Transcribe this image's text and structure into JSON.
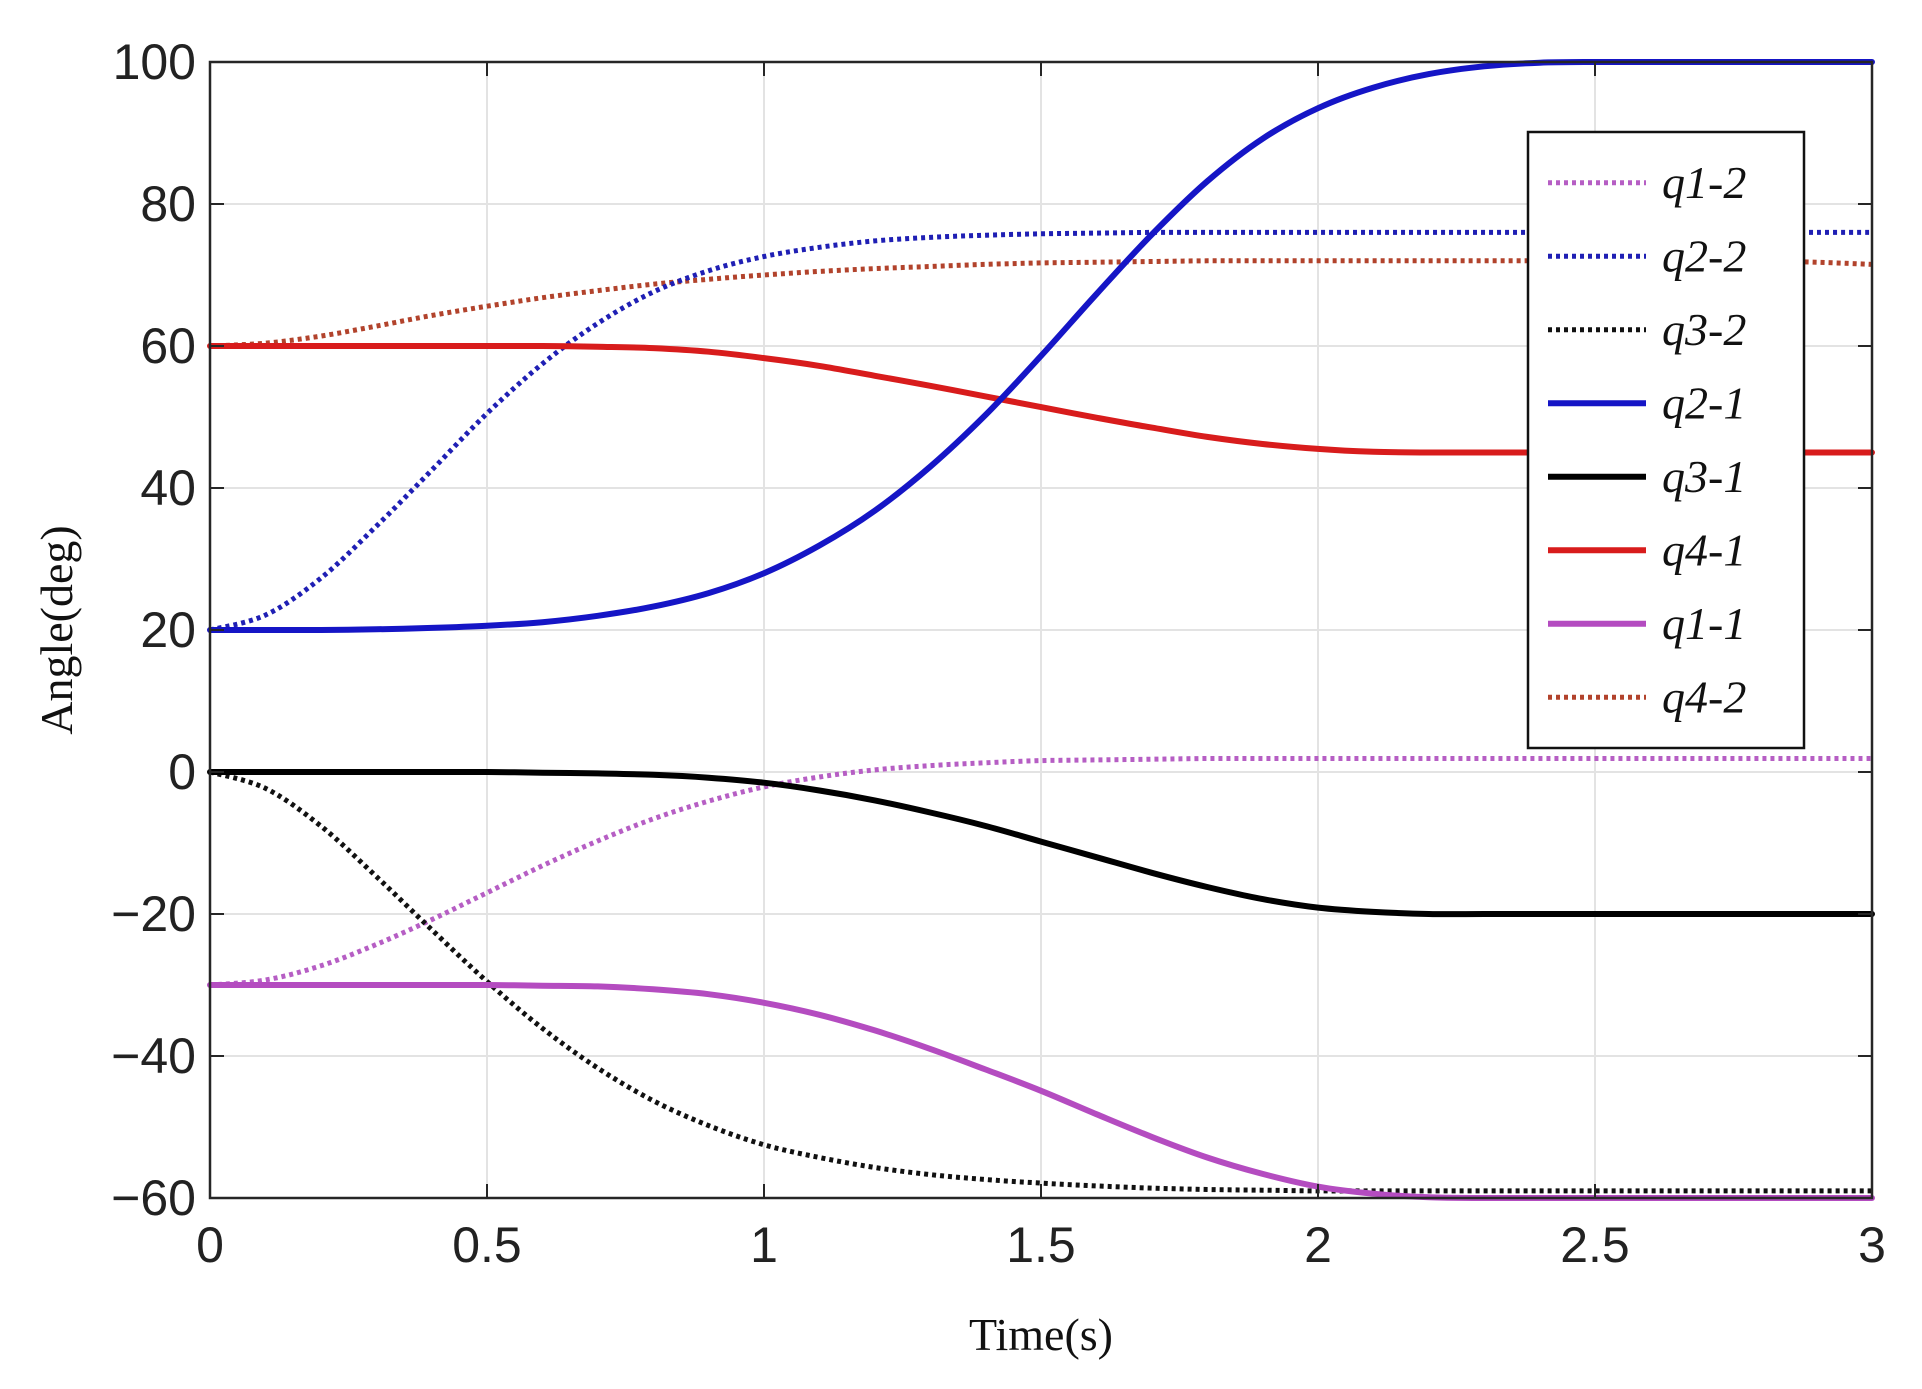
{
  "chart_data": {
    "type": "line",
    "title": "",
    "xlabel": "Time(s)",
    "ylabel": "Angle(deg)",
    "xlim": [
      0,
      3
    ],
    "ylim": [
      -60,
      100
    ],
    "xticks": [
      0,
      0.5,
      1,
      1.5,
      2,
      2.5,
      3
    ],
    "xtick_labels": [
      "0",
      "0.5",
      "1",
      "1.5",
      "2",
      "2.5",
      "3"
    ],
    "yticks": [
      100,
      80,
      60,
      40,
      20,
      0,
      -20,
      -40,
      -60
    ],
    "ytick_labels": [
      "100",
      "80",
      "60",
      "40",
      "20",
      "0",
      "−20",
      "−40",
      "−60"
    ],
    "grid": true,
    "legend_position": "top-right",
    "x": [
      0,
      0.1,
      0.2,
      0.3,
      0.4,
      0.5,
      0.6,
      0.7,
      0.8,
      0.9,
      1.0,
      1.1,
      1.2,
      1.3,
      1.4,
      1.5,
      1.6,
      1.7,
      1.8,
      1.9,
      2.0,
      2.1,
      2.2,
      2.3,
      2.4,
      2.5,
      2.6,
      2.7,
      2.8,
      2.9,
      3.0
    ],
    "series": [
      {
        "name": "q1-2",
        "color": "#b65ec4",
        "style": "dotted",
        "values": [
          -30,
          -29.3,
          -27.3,
          -24.3,
          -20.8,
          -17,
          -13.2,
          -9.7,
          -6.6,
          -4.1,
          -2.1,
          -0.7,
          0.3,
          0.9,
          1.3,
          1.6,
          1.7,
          1.8,
          1.9,
          1.9,
          1.9,
          1.9,
          1.9,
          1.9,
          1.9,
          1.9,
          1.9,
          1.9,
          1.9,
          1.9,
          1.9
        ]
      },
      {
        "name": "q2-2",
        "color": "#1f1fb4",
        "style": "dotted",
        "values": [
          20,
          22.1,
          27.3,
          34.6,
          42.5,
          50.5,
          57.5,
          63.2,
          67.6,
          70.6,
          72.6,
          73.9,
          74.8,
          75.3,
          75.6,
          75.8,
          75.9,
          76,
          76,
          76,
          76,
          76,
          76,
          76,
          76,
          76,
          76,
          76,
          76,
          76,
          76
        ]
      },
      {
        "name": "q3-2",
        "color": "#111111",
        "style": "dotted",
        "values": [
          0,
          -2.3,
          -7.6,
          -14.7,
          -22.2,
          -29.5,
          -36.1,
          -41.7,
          -46.3,
          -49.8,
          -52.5,
          -54.3,
          -55.7,
          -56.7,
          -57.4,
          -57.9,
          -58.3,
          -58.6,
          -58.8,
          -58.9,
          -59,
          -59,
          -59,
          -59,
          -59,
          -59,
          -59,
          -59,
          -59,
          -59,
          -59
        ]
      },
      {
        "name": "q2-1",
        "color": "#1515c6",
        "style": "solid",
        "values": [
          20,
          20,
          20,
          20.1,
          20.3,
          20.6,
          21.1,
          22,
          23.3,
          25.2,
          28,
          31.9,
          36.8,
          43,
          50.3,
          58.6,
          67.3,
          75.7,
          83.2,
          89.2,
          93.5,
          96.4,
          98.3,
          99.4,
          99.9,
          100,
          100,
          100,
          100,
          100,
          100
        ]
      },
      {
        "name": "q3-1",
        "color": "#000000",
        "style": "solid",
        "values": [
          0,
          0,
          0,
          0,
          0,
          0,
          -0.1,
          -0.2,
          -0.4,
          -0.8,
          -1.5,
          -2.6,
          -4,
          -5.7,
          -7.6,
          -9.8,
          -12,
          -14.2,
          -16.2,
          -17.9,
          -19.1,
          -19.7,
          -20,
          -20,
          -20,
          -20,
          -20,
          -20,
          -20,
          -20,
          -20
        ]
      },
      {
        "name": "q4-1",
        "color": "#d81c1c",
        "style": "solid",
        "values": [
          60,
          60,
          60,
          60,
          60,
          60,
          60,
          59.9,
          59.7,
          59.2,
          58.3,
          57.2,
          55.8,
          54.4,
          52.9,
          51.4,
          49.9,
          48.5,
          47.2,
          46.2,
          45.5,
          45.1,
          45,
          45,
          45,
          45,
          45,
          45,
          45,
          45,
          45
        ]
      },
      {
        "name": "q1-1",
        "color": "#b44cc0",
        "style": "solid",
        "values": [
          -30,
          -30,
          -30,
          -30,
          -30,
          -30,
          -30.1,
          -30.2,
          -30.6,
          -31.3,
          -32.5,
          -34.2,
          -36.4,
          -39,
          -41.9,
          -44.9,
          -48.2,
          -51.4,
          -54.3,
          -56.6,
          -58.4,
          -59.4,
          -59.9,
          -60,
          -60,
          -60,
          -60,
          -60,
          -60,
          -60,
          -60
        ]
      },
      {
        "name": "q4-2",
        "color": "#b2432c",
        "style": "dotted",
        "values": [
          60,
          60.4,
          61.4,
          62.8,
          64.3,
          65.6,
          66.8,
          67.8,
          68.7,
          69.4,
          70,
          70.5,
          70.9,
          71.2,
          71.5,
          71.7,
          71.8,
          71.9,
          72,
          72,
          72,
          72,
          72,
          72,
          72,
          72,
          72,
          72,
          72,
          71.8,
          71.5
        ]
      }
    ]
  }
}
